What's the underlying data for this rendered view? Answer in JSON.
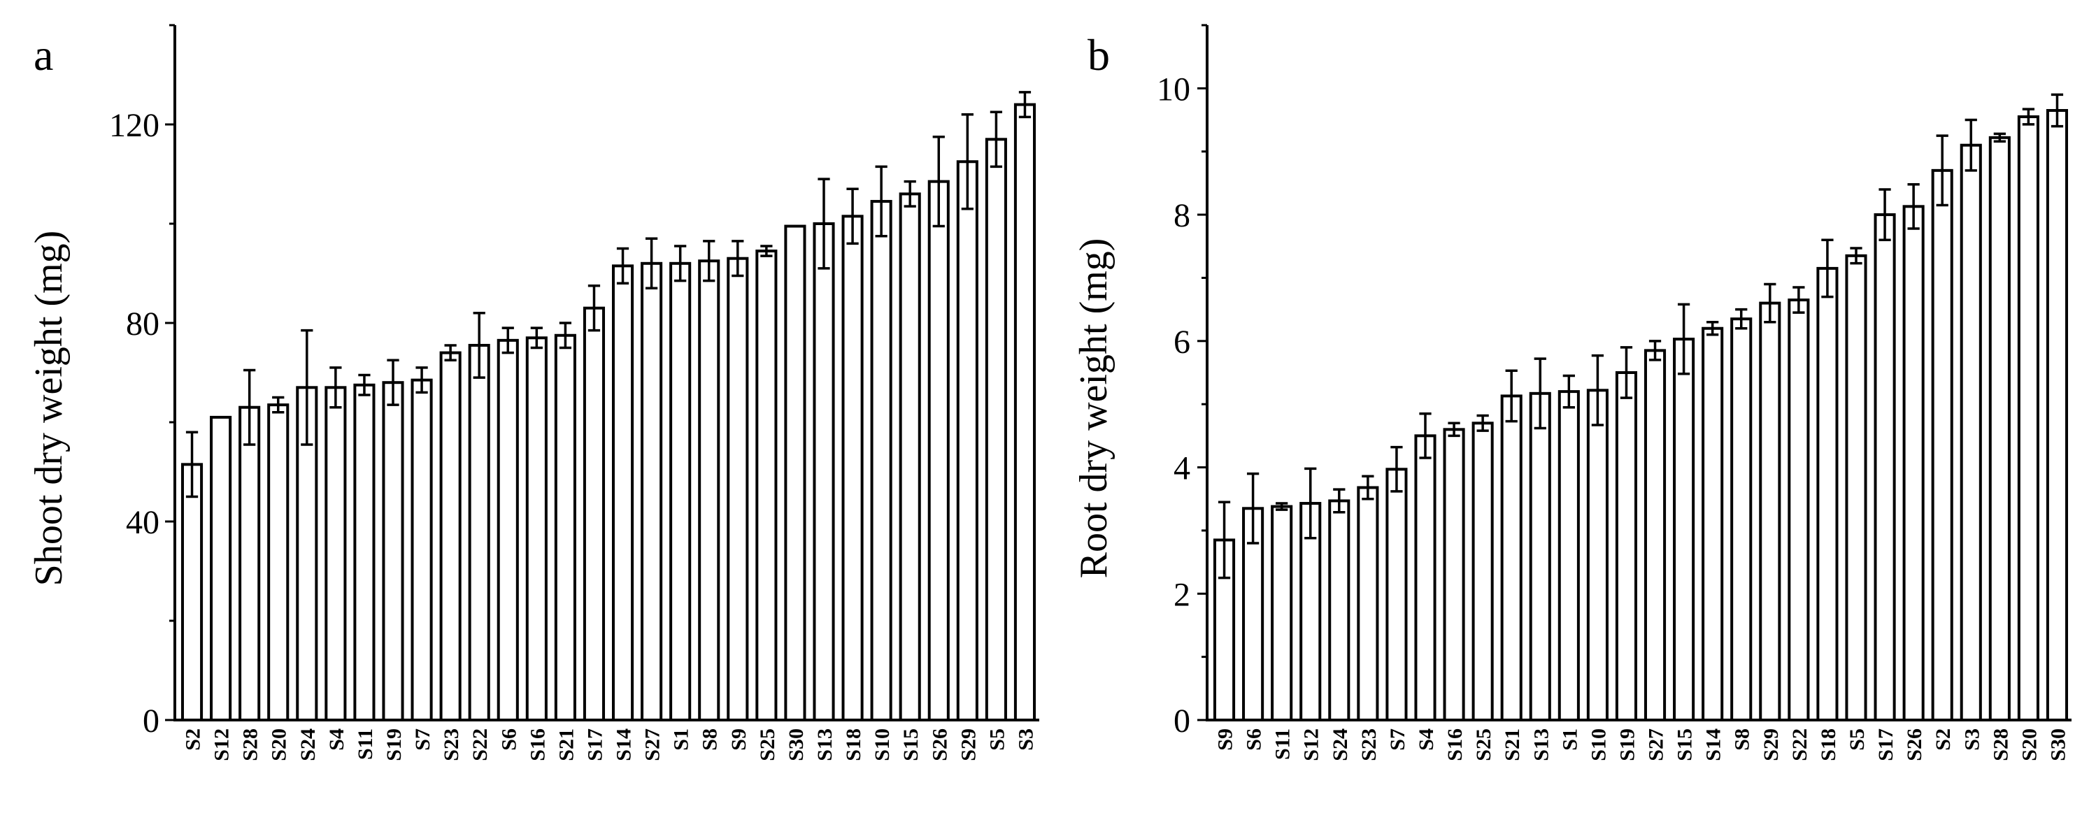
{
  "chart_data": [
    {
      "type": "bar",
      "panel_label": "a",
      "title": "",
      "xlabel": "",
      "ylabel": "Shoot dry weight (mg)",
      "ylim": [
        0,
        140
      ],
      "yticks": [
        0,
        40,
        80,
        120
      ],
      "grid": false,
      "categories": [
        "S2",
        "S12",
        "S28",
        "S20",
        "S24",
        "S4",
        "S11",
        "S19",
        "S7",
        "S23",
        "S22",
        "S6",
        "S16",
        "S21",
        "S17",
        "S14",
        "S27",
        "S1",
        "S8",
        "S9",
        "S25",
        "S30",
        "S13",
        "S18",
        "S10",
        "S15",
        "S26",
        "S29",
        "S5",
        "S3"
      ],
      "values": [
        51.5,
        61,
        63,
        63.5,
        67,
        67,
        67.5,
        68,
        68.5,
        74,
        75.5,
        76.5,
        77,
        77.5,
        83,
        91.5,
        92,
        92,
        92.5,
        93,
        94.5,
        99.5,
        100,
        101.5,
        104.5,
        106,
        108.5,
        112.5,
        117,
        124
      ],
      "errors": [
        6.5,
        0,
        7.5,
        1.5,
        11.5,
        4,
        2,
        4.5,
        2.5,
        1.5,
        6.5,
        2.5,
        2,
        2.5,
        4.5,
        3.5,
        5,
        3.5,
        4,
        3.5,
        1,
        0,
        9,
        5.5,
        7,
        2.5,
        9,
        9.5,
        5.5,
        2.5
      ]
    },
    {
      "type": "bar",
      "panel_label": "b",
      "title": "",
      "xlabel": "",
      "ylabel": "Root dry weight  (mg)",
      "ylim": [
        0,
        11
      ],
      "yticks": [
        0,
        2,
        4,
        6,
        8,
        10
      ],
      "grid": false,
      "categories": [
        "S9",
        "S6",
        "S11",
        "S12",
        "S24",
        "S23",
        "S7",
        "S4",
        "S16",
        "S25",
        "S21",
        "S13",
        "S1",
        "S10",
        "S19",
        "S27",
        "S15",
        "S14",
        "S8",
        "S29",
        "S22",
        "S18",
        "S5",
        "S17",
        "S26",
        "S2",
        "S3",
        "S28",
        "S20",
        "S30"
      ],
      "values": [
        2.85,
        3.35,
        3.38,
        3.43,
        3.47,
        3.68,
        3.97,
        4.5,
        4.6,
        4.7,
        5.13,
        5.17,
        5.2,
        5.22,
        5.5,
        5.85,
        6.03,
        6.2,
        6.35,
        6.6,
        6.65,
        7.15,
        7.35,
        8,
        8.13,
        8.7,
        9.1,
        9.22,
        9.55,
        9.65
      ],
      "errors": [
        0.6,
        0.55,
        0.05,
        0.55,
        0.18,
        0.18,
        0.35,
        0.35,
        0.1,
        0.12,
        0.4,
        0.55,
        0.25,
        0.55,
        0.4,
        0.15,
        0.55,
        0.1,
        0.15,
        0.3,
        0.2,
        0.45,
        0.12,
        0.4,
        0.35,
        0.55,
        0.4,
        0.06,
        0.12,
        0.25
      ]
    }
  ]
}
